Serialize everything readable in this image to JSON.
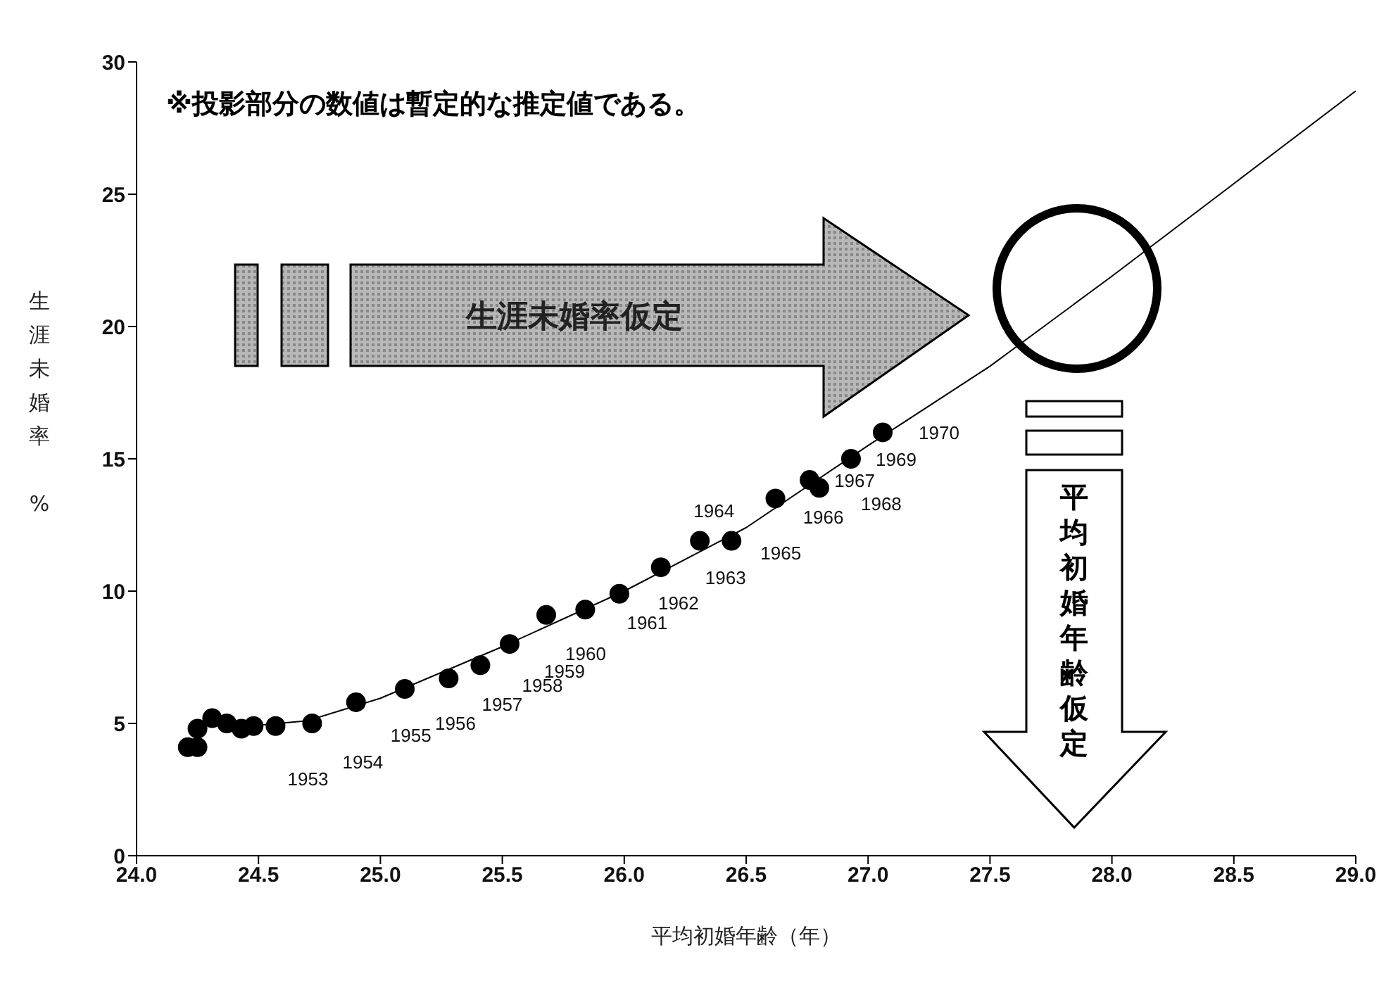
{
  "chart_data": {
    "type": "scatter",
    "xlabel": "平均初婚年齢（年）",
    "ylabel": "生涯未婚率 %",
    "annotations": [
      "※投影部分の数値は暫定的な推定値である。",
      "生涯未婚率仮定",
      "平均初婚年齢仮定",
      {
        "text": "1953",
        "x": 24.57,
        "y": 4.9
      },
      {
        "text": "1954",
        "x": 24.72,
        "y": 5.0
      },
      {
        "text": "1955",
        "x": 24.9,
        "y": 5.8
      },
      {
        "text": "1956",
        "x": 25.1,
        "y": 6.3
      },
      {
        "text": "1957",
        "x": 25.28,
        "y": 6.7
      },
      {
        "text": "1958",
        "x": 25.41,
        "y": 7.2
      },
      {
        "text": "1959",
        "x": 25.53,
        "y": 8.0
      },
      {
        "text": "1960",
        "x": 25.68,
        "y": 9.1
      },
      {
        "text": "1961",
        "x": 25.84,
        "y": 9.3
      },
      {
        "text": "1962",
        "x": 25.98,
        "y": 9.9
      },
      {
        "text": "1963",
        "x": 26.15,
        "y": 10.9
      },
      {
        "text": "1964",
        "x": 26.31,
        "y": 11.9
      },
      {
        "text": "1965",
        "x": 26.44,
        "y": 11.9
      },
      {
        "text": "1966",
        "x": 26.62,
        "y": 13.5
      },
      {
        "text": "1967",
        "x": 26.76,
        "y": 14.2
      },
      {
        "text": "1968",
        "x": 26.8,
        "y": 13.9
      },
      {
        "text": "1969",
        "x": 26.93,
        "y": 15.0
      },
      {
        "text": "1970",
        "x": 27.06,
        "y": 16.0
      }
    ],
    "series": [
      {
        "color": "#000000",
        "marker": "circle",
        "x": [
          24.21,
          24.25,
          24.25,
          24.31,
          24.37,
          24.43,
          24.48,
          24.57,
          24.72,
          24.9,
          25.1,
          25.28,
          25.41,
          25.53,
          25.68,
          25.84,
          25.98,
          26.15,
          26.31,
          26.44,
          26.62,
          26.76,
          26.8,
          26.93,
          27.06
        ],
        "values": [
          4.1,
          4.1,
          4.8,
          5.2,
          5.0,
          4.8,
          4.9,
          4.9,
          5.0,
          5.8,
          6.3,
          6.7,
          7.2,
          8.0,
          9.1,
          9.3,
          9.9,
          10.9,
          11.9,
          11.9,
          13.5,
          14.2,
          13.9,
          15.0,
          16.0
        ]
      },
      {
        "type": "line",
        "color": "#000000",
        "marker": "none",
        "line_style": "solid",
        "x": [
          24.4,
          24.7,
          25.0,
          25.5,
          26.0,
          26.5,
          27.0,
          27.5,
          28.0,
          28.5,
          29.0
        ],
        "values": [
          4.85,
          5.1,
          5.95,
          7.9,
          10.0,
          12.4,
          15.5,
          18.5,
          21.9,
          25.4,
          28.9
        ]
      }
    ],
    "xlim": [
      24,
      29
    ],
    "xticks": [
      {
        "value": 24,
        "label": "24.0"
      },
      {
        "value": 24.5,
        "label": "24.5"
      },
      {
        "value": 25,
        "label": "25.0"
      },
      {
        "value": 25.5,
        "label": "25.5"
      },
      {
        "value": 26,
        "label": "26.0"
      },
      {
        "value": 26.5,
        "label": "26.5"
      },
      {
        "value": 27,
        "label": "27.0"
      },
      {
        "value": 27.5,
        "label": "27.5"
      },
      {
        "value": 28,
        "label": "28.0"
      },
      {
        "value": 28.5,
        "label": "28.5"
      },
      {
        "value": 29,
        "label": "29.0"
      }
    ],
    "ylim": [
      0,
      30
    ],
    "yticks": [
      0,
      5,
      10,
      15,
      20,
      25,
      30
    ]
  }
}
